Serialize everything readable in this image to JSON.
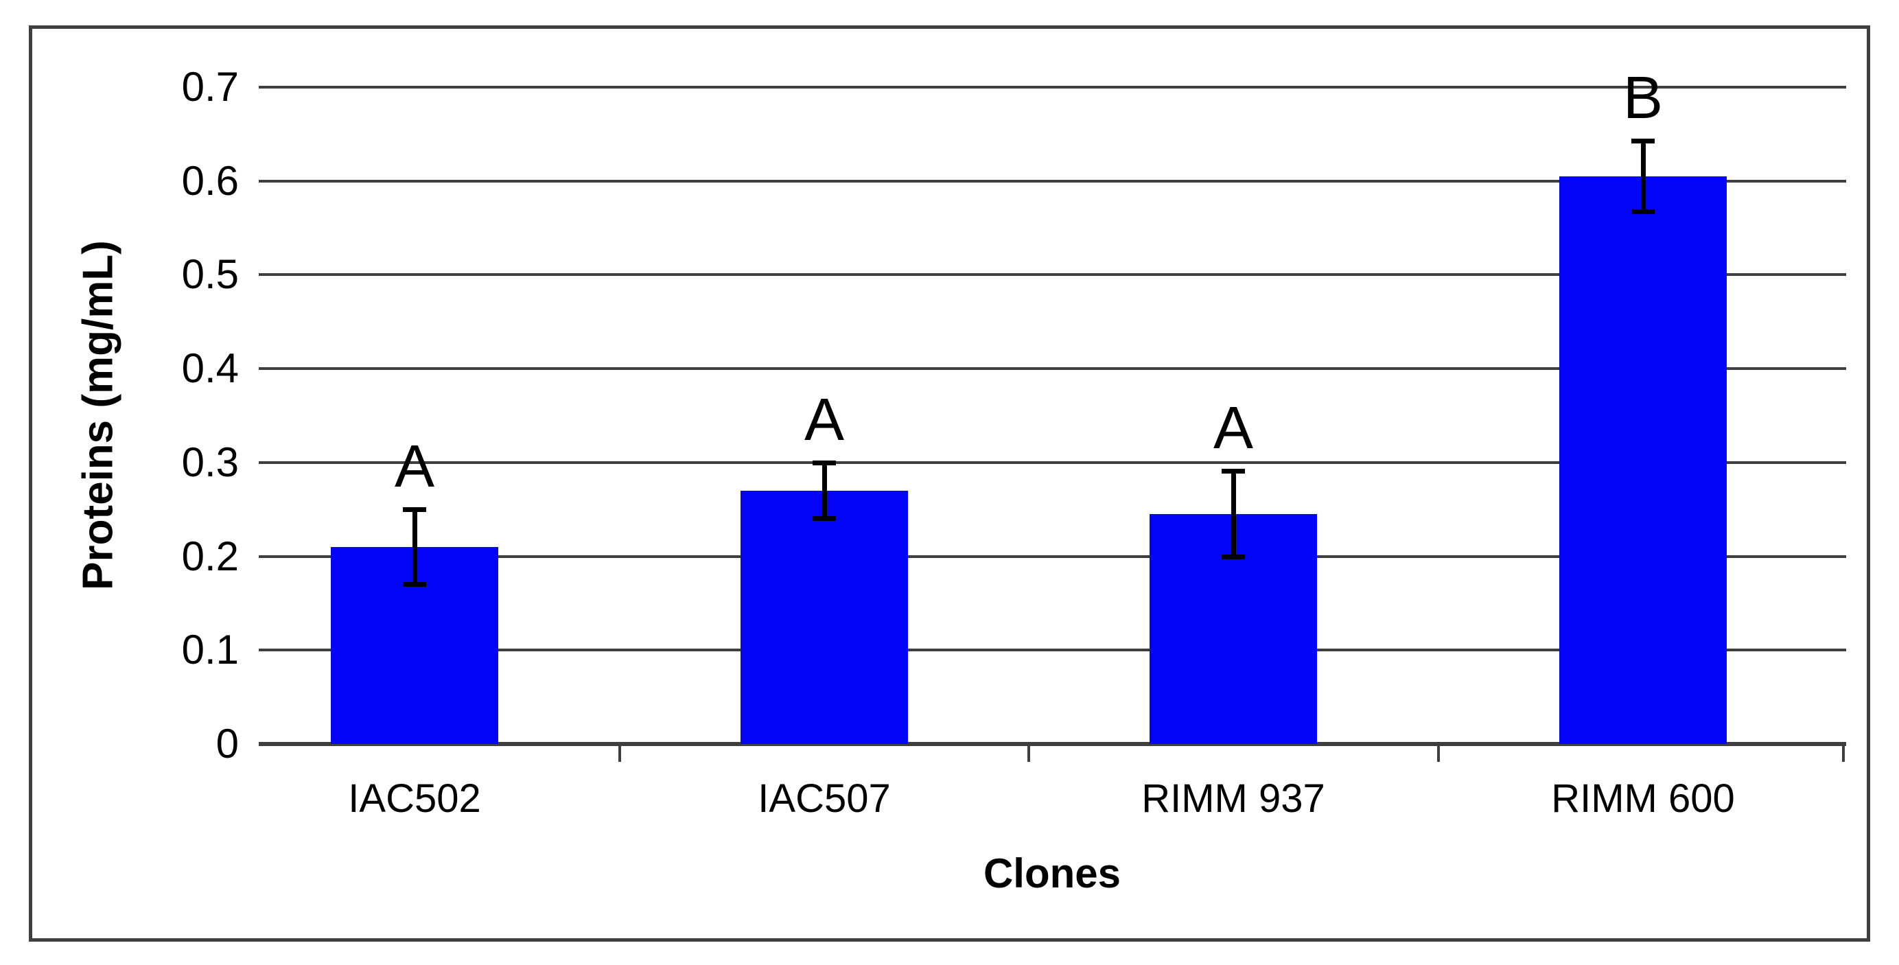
{
  "chart_data": {
    "type": "bar",
    "title": "",
    "xlabel": "Clones",
    "ylabel": "Proteins (mg/mL)",
    "categories": [
      "IAC502",
      "IAC507",
      "RIMM 937",
      "RIMM 600"
    ],
    "values": [
      0.21,
      0.27,
      0.245,
      0.605
    ],
    "error_bars_plus_minus": [
      0.04,
      0.03,
      0.046,
      0.038
    ],
    "significance_letters": [
      "A",
      "A",
      "A",
      "B"
    ],
    "ylim": [
      0,
      0.7
    ],
    "ytick_labels": [
      "0.7",
      "0.6",
      "0.5",
      "0.4",
      "0.3",
      "0.2",
      "0.1",
      "0"
    ],
    "grid": "horizontal-gridlines-on",
    "legend": "none",
    "bar_color": "#0404f8",
    "gridline_color": "#3f3f3f",
    "error_bar_color": "#000000",
    "text_color": "#000000"
  }
}
